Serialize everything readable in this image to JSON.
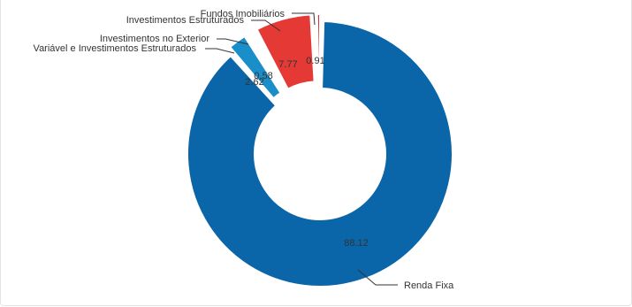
{
  "chart_data": {
    "type": "pie",
    "variant": "donut",
    "title": "",
    "slices": [
      {
        "label": "Renda Fixa",
        "value": 88.12,
        "value_label": "88.12",
        "color": "#0a66a8"
      },
      {
        "label": "Variável e Investimentos Estruturados",
        "value": 2.62,
        "value_label": "2.62",
        "color": "#1a8ec9"
      },
      {
        "label": "Investimentos no Exterior",
        "value": 0.58,
        "value_label": "0.58",
        "color": "#45b5e0"
      },
      {
        "label": "Investimentos Estruturados",
        "value": 7.77,
        "value_label": "7.77",
        "color": "#e53935"
      },
      {
        "label": "Fundos Imobiliários",
        "value": 0.91,
        "value_label": "0.91",
        "color": "#c62828"
      }
    ],
    "legend": "none"
  }
}
